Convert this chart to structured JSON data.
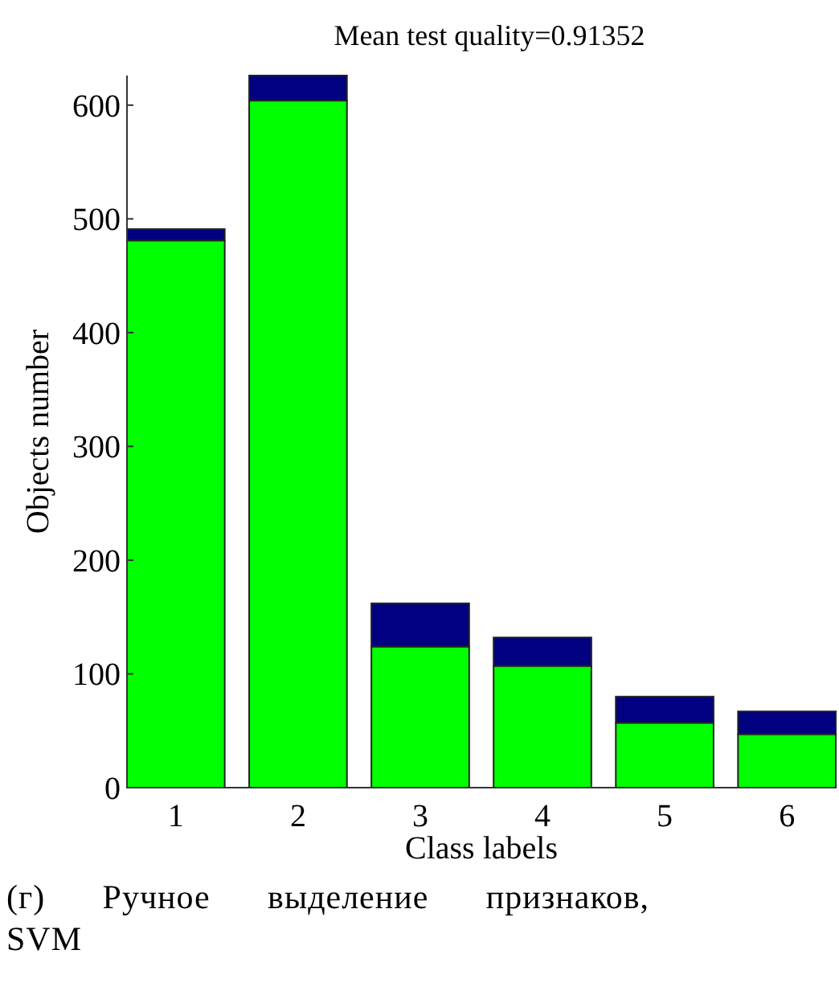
{
  "chart_data": {
    "type": "bar",
    "title": "Mean test quality=0.91352",
    "xlabel": "Class labels",
    "ylabel": "Objects number",
    "categories": [
      "1",
      "2",
      "3",
      "4",
      "5",
      "6"
    ],
    "stacked": true,
    "series": [
      {
        "color": "#00ff00",
        "values": [
          481,
          604,
          124,
          107,
          57,
          47
        ]
      },
      {
        "color": "#000080",
        "values": [
          10,
          22,
          38,
          25,
          23,
          20
        ]
      }
    ],
    "ylim": [
      0,
      626
    ],
    "yticks": [
      0,
      100,
      200,
      300,
      400,
      500,
      600
    ],
    "grid": false,
    "annotations": [
      "(г) Ручное выделение признаков, SVM"
    ]
  }
}
